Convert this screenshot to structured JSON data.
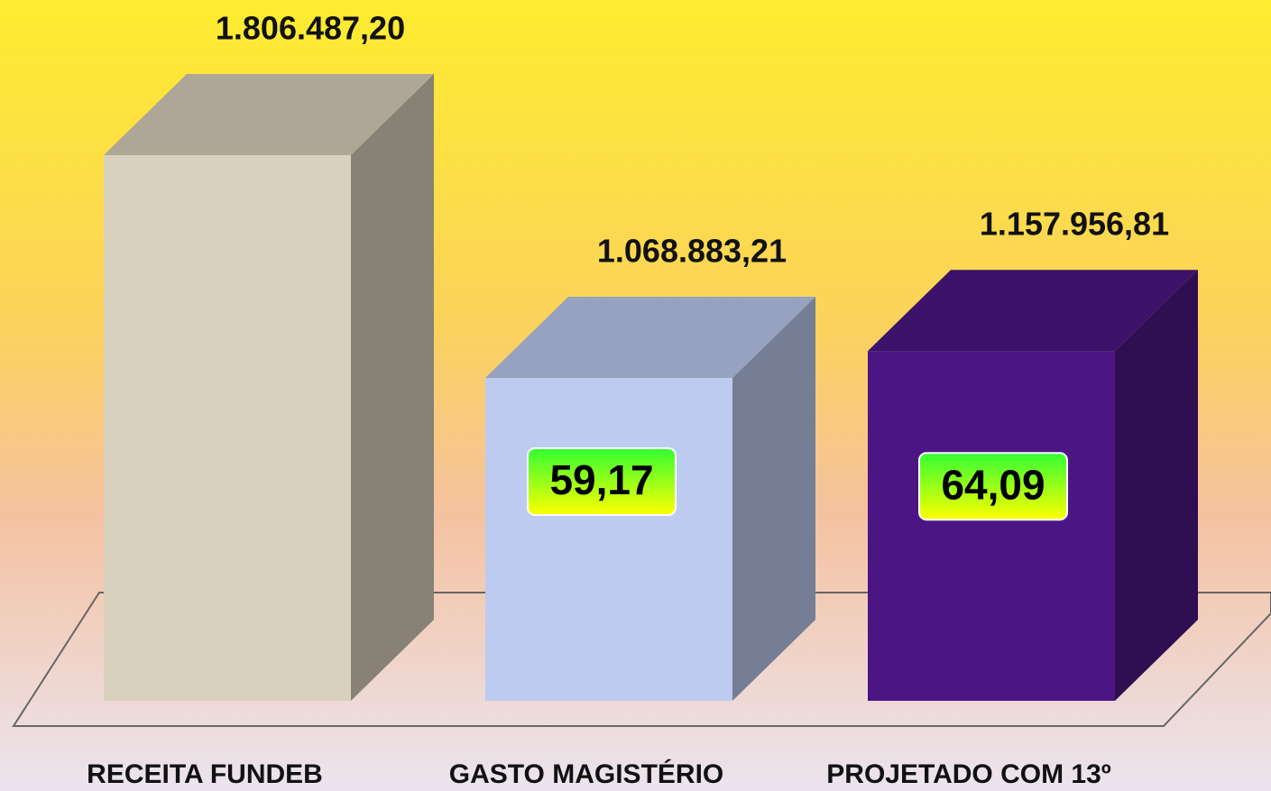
{
  "chart_data": {
    "type": "bar3d",
    "categories": [
      "RECEITA FUNDEB",
      "GASTO MAGISTÉRIO",
      "PROJETADO COM 13º"
    ],
    "values": [
      1806487.2,
      1068883.21,
      1157956.81
    ],
    "value_labels": [
      "1.806.487,20",
      "1.068.883,21",
      "1.157.956,81"
    ],
    "colors": [
      "#d9d1bd",
      "#bccbef",
      "#4b1684"
    ],
    "annotations": [
      null,
      "59,17",
      "64,09"
    ]
  }
}
